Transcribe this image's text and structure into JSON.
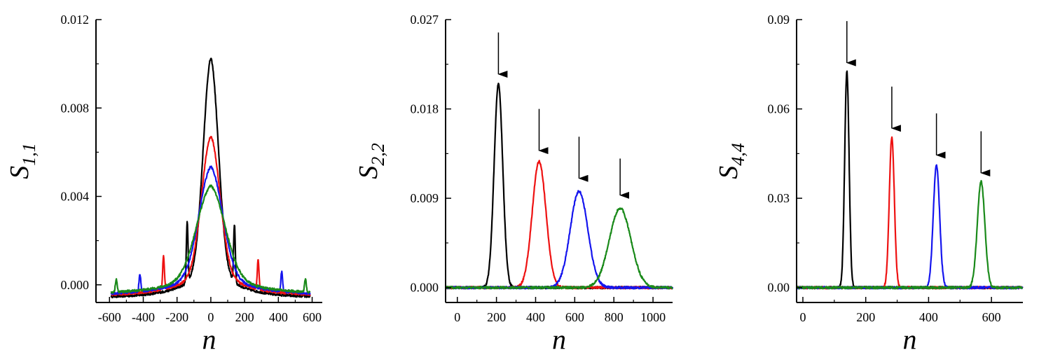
{
  "chart_data": [
    {
      "type": "line",
      "xlabel": "n",
      "ylabel": {
        "base": "S",
        "sub": "1,1"
      },
      "xlim": [
        -680,
        660
      ],
      "ylim": [
        -0.0008,
        0.012
      ],
      "xticks": [
        -600,
        -400,
        -200,
        0,
        200,
        400,
        600
      ],
      "yticks": [
        0.0,
        0.004,
        0.008,
        0.012
      ],
      "xtick_labels": [
        "-600",
        "-400",
        "-200",
        "0",
        "200",
        "400",
        "600"
      ],
      "ytick_labels": [
        "0.000",
        "0.004",
        "0.008",
        "0.012"
      ],
      "grid": false,
      "series": [
        {
          "color": "#000000",
          "shape": "gauss",
          "center": 0,
          "peak": 0.0092,
          "width": 45,
          "tail_amp": 0.0016,
          "tail_width": 150,
          "spikes": [
            [
              -140,
              0.0027
            ],
            [
              140,
              0.0026
            ]
          ],
          "xrange": [
            -590,
            590
          ]
        },
        {
          "color": "#ee1111",
          "shape": "gauss",
          "center": 0,
          "peak": 0.0058,
          "width": 55,
          "tail_amp": 0.0014,
          "tail_width": 180,
          "spikes": [
            [
              -280,
              0.0015
            ],
            [
              280,
              0.0013
            ]
          ],
          "xrange": [
            -590,
            590
          ]
        },
        {
          "color": "#1515ee",
          "shape": "gauss",
          "center": 0,
          "peak": 0.0045,
          "width": 70,
          "tail_amp": 0.0013,
          "tail_width": 200,
          "spikes": [
            [
              -420,
              0.0008
            ],
            [
              420,
              0.0009
            ]
          ],
          "xrange": [
            -590,
            590
          ]
        },
        {
          "color": "#1a8a1a",
          "shape": "gauss",
          "center": 0,
          "peak": 0.0037,
          "width": 85,
          "tail_amp": 0.0012,
          "tail_width": 220,
          "spikes": [
            [
              -560,
              0.0006
            ],
            [
              560,
              0.0006
            ]
          ],
          "xrange": [
            -590,
            590
          ]
        }
      ],
      "arrows": []
    },
    {
      "type": "line",
      "xlabel": "n",
      "ylabel": {
        "base": "S",
        "sub": "2,2"
      },
      "xlim": [
        -60,
        1100
      ],
      "ylim": [
        -0.0015,
        0.027
      ],
      "xticks": [
        0,
        200,
        400,
        600,
        800,
        1000
      ],
      "yticks": [
        0.0,
        0.009,
        0.018,
        0.027
      ],
      "xtick_labels": [
        "0",
        "200",
        "400",
        "600",
        "800",
        "1000"
      ],
      "ytick_labels": [
        "0.000",
        "0.009",
        "0.018",
        "0.027"
      ],
      "grid": false,
      "series": [
        {
          "color": "#000000",
          "shape": "gauss",
          "center": 210,
          "peak": 0.0205,
          "width": 22,
          "tail_amp": 0,
          "tail_width": 1,
          "spikes": [],
          "xrange": [
            -60,
            1100
          ]
        },
        {
          "color": "#ee1111",
          "shape": "gauss",
          "center": 418,
          "peak": 0.0127,
          "width": 35,
          "tail_amp": 0,
          "tail_width": 1,
          "spikes": [],
          "xrange": [
            -60,
            1100
          ]
        },
        {
          "color": "#1515ee",
          "shape": "gauss",
          "center": 622,
          "peak": 0.0097,
          "width": 45,
          "tail_amp": 0,
          "tail_width": 1,
          "spikes": [],
          "xrange": [
            -60,
            1100
          ]
        },
        {
          "color": "#1a8a1a",
          "shape": "gauss",
          "center": 832,
          "peak": 0.008,
          "width": 55,
          "tail_amp": 0,
          "tail_width": 1,
          "spikes": [],
          "xrange": [
            -60,
            1100
          ]
        }
      ],
      "arrows": [
        {
          "x": 210,
          "y_from": 0.0257,
          "y_to": 0.0215
        },
        {
          "x": 418,
          "y_from": 0.018,
          "y_to": 0.0138
        },
        {
          "x": 622,
          "y_from": 0.0152,
          "y_to": 0.011
        },
        {
          "x": 832,
          "y_from": 0.013,
          "y_to": 0.0093
        }
      ]
    },
    {
      "type": "line",
      "xlabel": "n",
      "ylabel": {
        "base": "S",
        "sub": "4,4"
      },
      "xlim": [
        -20,
        700
      ],
      "ylim": [
        -0.005,
        0.09
      ],
      "xticks": [
        0,
        200,
        400,
        600
      ],
      "yticks": [
        0.0,
        0.03,
        0.06,
        0.09
      ],
      "xtick_labels": [
        "0",
        "200",
        "400",
        "600"
      ],
      "ytick_labels": [
        "0.00",
        "0.03",
        "0.06",
        "0.09"
      ],
      "grid": false,
      "series": [
        {
          "color": "#000000",
          "shape": "gauss",
          "center": 140,
          "peak": 0.0725,
          "width": 7,
          "tail_amp": 0,
          "tail_width": 1,
          "spikes": [],
          "xrange": [
            -20,
            700
          ]
        },
        {
          "color": "#ee1111",
          "shape": "gauss",
          "center": 283,
          "peak": 0.0505,
          "width": 8,
          "tail_amp": 0,
          "tail_width": 1,
          "spikes": [],
          "xrange": [
            -20,
            700
          ]
        },
        {
          "color": "#1515ee",
          "shape": "gauss",
          "center": 425,
          "peak": 0.0412,
          "width": 10,
          "tail_amp": 0,
          "tail_width": 1,
          "spikes": [],
          "xrange": [
            -20,
            700
          ]
        },
        {
          "color": "#1a8a1a",
          "shape": "gauss",
          "center": 567,
          "peak": 0.0356,
          "width": 12,
          "tail_amp": 0,
          "tail_width": 1,
          "spikes": [],
          "xrange": [
            -20,
            700
          ]
        }
      ],
      "arrows": [
        {
          "x": 140,
          "y_from": 0.0895,
          "y_to": 0.0755
        },
        {
          "x": 283,
          "y_from": 0.0675,
          "y_to": 0.0535
        },
        {
          "x": 425,
          "y_from": 0.0585,
          "y_to": 0.0445
        },
        {
          "x": 567,
          "y_from": 0.0525,
          "y_to": 0.0385
        }
      ]
    }
  ]
}
